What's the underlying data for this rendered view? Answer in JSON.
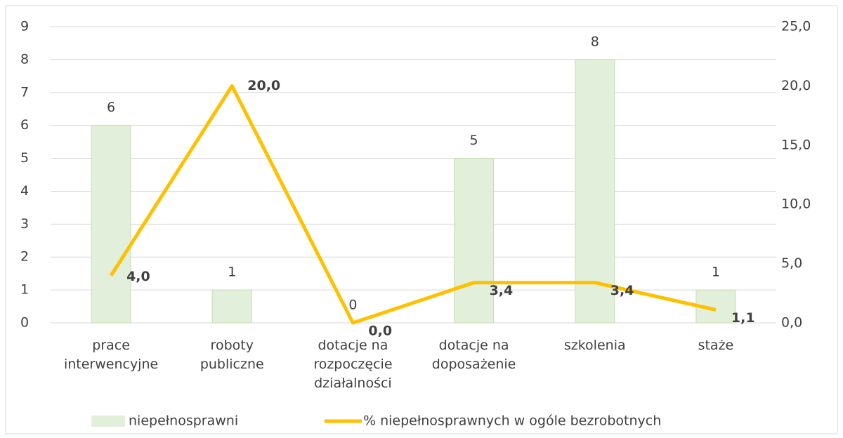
{
  "chart_data": {
    "type": "bar-line",
    "categories": [
      [
        "prace",
        "interwencyjne"
      ],
      [
        "roboty",
        "publiczne"
      ],
      [
        "dotacje na",
        "rozpoczęcie",
        "działalności"
      ],
      [
        "dotacje na",
        "doposażenie"
      ],
      [
        "szkolenia"
      ],
      [
        "staże"
      ]
    ],
    "series": [
      {
        "name": "niepełnosprawni",
        "type": "bar",
        "color": "#e2efda",
        "values": [
          6,
          1,
          0,
          5,
          8,
          1
        ]
      },
      {
        "name": "% niepełnosprawnych w ogóle bezrobotnych",
        "type": "line",
        "axis": "y2",
        "color": "#ffc000",
        "values": [
          4.0,
          20.0,
          0.0,
          3.4,
          3.4,
          1.1
        ],
        "value_labels": [
          "4,0",
          "20,0",
          "0,0",
          "3,4",
          "3,4",
          "1,1"
        ]
      }
    ],
    "ylim": [
      0,
      9
    ],
    "yticks": [
      0,
      1,
      2,
      3,
      4,
      5,
      6,
      7,
      8,
      9
    ],
    "y2lim": [
      0,
      25
    ],
    "y2ticks": [
      {
        "value": 0,
        "label": "0,0"
      },
      {
        "value": 5,
        "label": "5,0"
      },
      {
        "value": 10,
        "label": "10,0"
      },
      {
        "value": 15,
        "label": "15,0"
      },
      {
        "value": 20,
        "label": "20,0"
      },
      {
        "value": 25,
        "label": "25,0"
      }
    ],
    "grid": true,
    "legend": "bottom"
  }
}
